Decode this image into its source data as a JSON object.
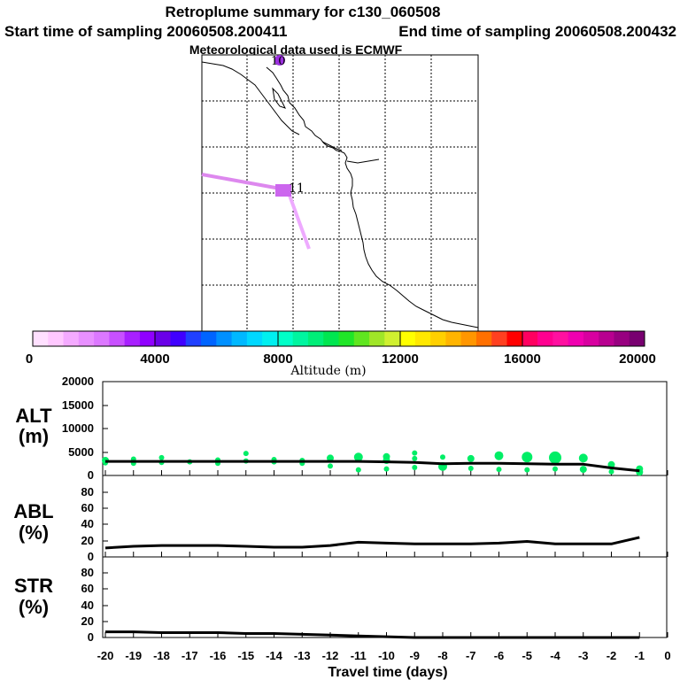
{
  "header": {
    "title": "Retroplume summary for c130_060508",
    "start_label": "Start time of sampling 20060508.200411",
    "end_label": "End time of sampling 20060508.200432",
    "met_label": "Meteorological data used is ECMWF"
  },
  "map": {
    "marker_top_label": "10",
    "marker_center_label": "11"
  },
  "colorbar": {
    "ticks": [
      "0",
      "4000",
      "8000",
      "12000",
      "16000",
      "20000"
    ],
    "label": "Altitude  (m)",
    "colors": [
      "#ffe0ff",
      "#ffc8ff",
      "#f4aaff",
      "#e890ff",
      "#dc78ff",
      "#c850ff",
      "#a820ff",
      "#9000ff",
      "#6a00e8",
      "#4000ff",
      "#2040ff",
      "#0064ff",
      "#0090ff",
      "#00b8ff",
      "#00d8ff",
      "#00f0f0",
      "#00ffc8",
      "#00f5a0",
      "#00ee78",
      "#00e650",
      "#20e628",
      "#60e620",
      "#a0e628",
      "#d0f030",
      "#ffff00",
      "#ffe800",
      "#ffd000",
      "#ffb400",
      "#ff9600",
      "#ff7000",
      "#ff4020",
      "#ff0000",
      "#ff0060",
      "#ff0090",
      "#ff10a0",
      "#f000b0",
      "#d800a0",
      "#b80090",
      "#980080",
      "#780070"
    ]
  },
  "chart_data": [
    {
      "type": "line",
      "name": "ALT",
      "label_line1": "ALT",
      "label_line2": "(m)",
      "x": [
        -20,
        -19,
        -18,
        -17,
        -16,
        -15,
        -14,
        -13,
        -12,
        -11,
        -10,
        -9,
        -8,
        -7,
        -6,
        -5,
        -4,
        -3,
        -2,
        -1
      ],
      "values": [
        3000,
        3000,
        3000,
        3000,
        3000,
        3000,
        3000,
        3000,
        3000,
        3000,
        2900,
        2800,
        2500,
        2600,
        2600,
        2500,
        2400,
        2400,
        1600,
        1000
      ],
      "scatter": [
        {
          "x": -20,
          "y": 3200,
          "s": 4
        },
        {
          "x": -20,
          "y": 2700,
          "s": 3
        },
        {
          "x": -19,
          "y": 3500,
          "s": 3
        },
        {
          "x": -19,
          "y": 2600,
          "s": 3
        },
        {
          "x": -18,
          "y": 3800,
          "s": 3
        },
        {
          "x": -18,
          "y": 2800,
          "s": 3
        },
        {
          "x": -17,
          "y": 2900,
          "s": 3
        },
        {
          "x": -16,
          "y": 3300,
          "s": 3
        },
        {
          "x": -16,
          "y": 2600,
          "s": 3
        },
        {
          "x": -15,
          "y": 4700,
          "s": 3
        },
        {
          "x": -15,
          "y": 3100,
          "s": 3
        },
        {
          "x": -14,
          "y": 3400,
          "s": 3
        },
        {
          "x": -14,
          "y": 2900,
          "s": 3
        },
        {
          "x": -13,
          "y": 3200,
          "s": 3
        },
        {
          "x": -13,
          "y": 2600,
          "s": 3
        },
        {
          "x": -12,
          "y": 3700,
          "s": 4
        },
        {
          "x": -12,
          "y": 2000,
          "s": 3
        },
        {
          "x": -11,
          "y": 3900,
          "s": 5
        },
        {
          "x": -11,
          "y": 1200,
          "s": 3
        },
        {
          "x": -10,
          "y": 4000,
          "s": 4
        },
        {
          "x": -10,
          "y": 3200,
          "s": 4
        },
        {
          "x": -10,
          "y": 1400,
          "s": 3
        },
        {
          "x": -9,
          "y": 4800,
          "s": 3
        },
        {
          "x": -9,
          "y": 3600,
          "s": 3
        },
        {
          "x": -9,
          "y": 1700,
          "s": 3
        },
        {
          "x": -8,
          "y": 3900,
          "s": 3
        },
        {
          "x": -8,
          "y": 1900,
          "s": 5
        },
        {
          "x": -7,
          "y": 3600,
          "s": 4
        },
        {
          "x": -7,
          "y": 1500,
          "s": 3
        },
        {
          "x": -6,
          "y": 4200,
          "s": 5
        },
        {
          "x": -6,
          "y": 1300,
          "s": 3
        },
        {
          "x": -5,
          "y": 3900,
          "s": 6
        },
        {
          "x": -5,
          "y": 1200,
          "s": 3
        },
        {
          "x": -4,
          "y": 3800,
          "s": 7
        },
        {
          "x": -4,
          "y": 1400,
          "s": 3
        },
        {
          "x": -3,
          "y": 3700,
          "s": 5
        },
        {
          "x": -3,
          "y": 1300,
          "s": 4
        },
        {
          "x": -2,
          "y": 2300,
          "s": 4
        },
        {
          "x": -2,
          "y": 800,
          "s": 3
        },
        {
          "x": -1,
          "y": 1400,
          "s": 4
        },
        {
          "x": -1,
          "y": 700,
          "s": 4
        }
      ],
      "scatter_color": "#00ee66",
      "ylim": [
        0,
        20000
      ],
      "yticks": [
        "0",
        "5000",
        "10000",
        "15000",
        "20000"
      ],
      "xlim": [
        -20,
        0
      ]
    },
    {
      "type": "line",
      "name": "ABL",
      "label_line1": "ABL",
      "label_line2": "(%)",
      "x": [
        -20,
        -19,
        -18,
        -17,
        -16,
        -15,
        -14,
        -13,
        -12,
        -11,
        -10,
        -9,
        -8,
        -7,
        -6,
        -5,
        -4,
        -3,
        -2,
        -1
      ],
      "values": [
        11,
        13,
        14,
        14,
        14,
        13,
        12,
        12,
        14,
        18,
        17,
        16,
        16,
        16,
        17,
        19,
        16,
        16,
        16,
        24
      ],
      "ylim": [
        0,
        100
      ],
      "yticks": [
        "0",
        "20",
        "40",
        "60",
        "80"
      ],
      "xlim": [
        -20,
        0
      ]
    },
    {
      "type": "line",
      "name": "STR",
      "label_line1": "STR",
      "label_line2": "(%)",
      "x": [
        -20,
        -19,
        -18,
        -17,
        -16,
        -15,
        -14,
        -13,
        -12,
        -11,
        -10,
        -9,
        -8,
        -7,
        -6,
        -5,
        -4,
        -3,
        -2,
        -1
      ],
      "values": [
        7,
        7,
        6,
        6,
        6,
        5,
        5,
        4,
        3,
        2,
        1,
        0,
        0,
        0,
        0,
        0,
        0,
        0,
        0,
        0
      ],
      "ylim": [
        0,
        100
      ],
      "yticks": [
        "0",
        "20",
        "40",
        "60",
        "80"
      ],
      "xlim": [
        -20,
        0
      ]
    }
  ],
  "xaxis": {
    "ticks": [
      "-20",
      "-19",
      "-18",
      "-17",
      "-16",
      "-15",
      "-14",
      "-13",
      "-12",
      "-11",
      "-10",
      "-9",
      "-8",
      "-7",
      "-6",
      "-5",
      "-4",
      "-3",
      "-2",
      "-1",
      "0"
    ],
    "label": "Travel time (days)"
  }
}
